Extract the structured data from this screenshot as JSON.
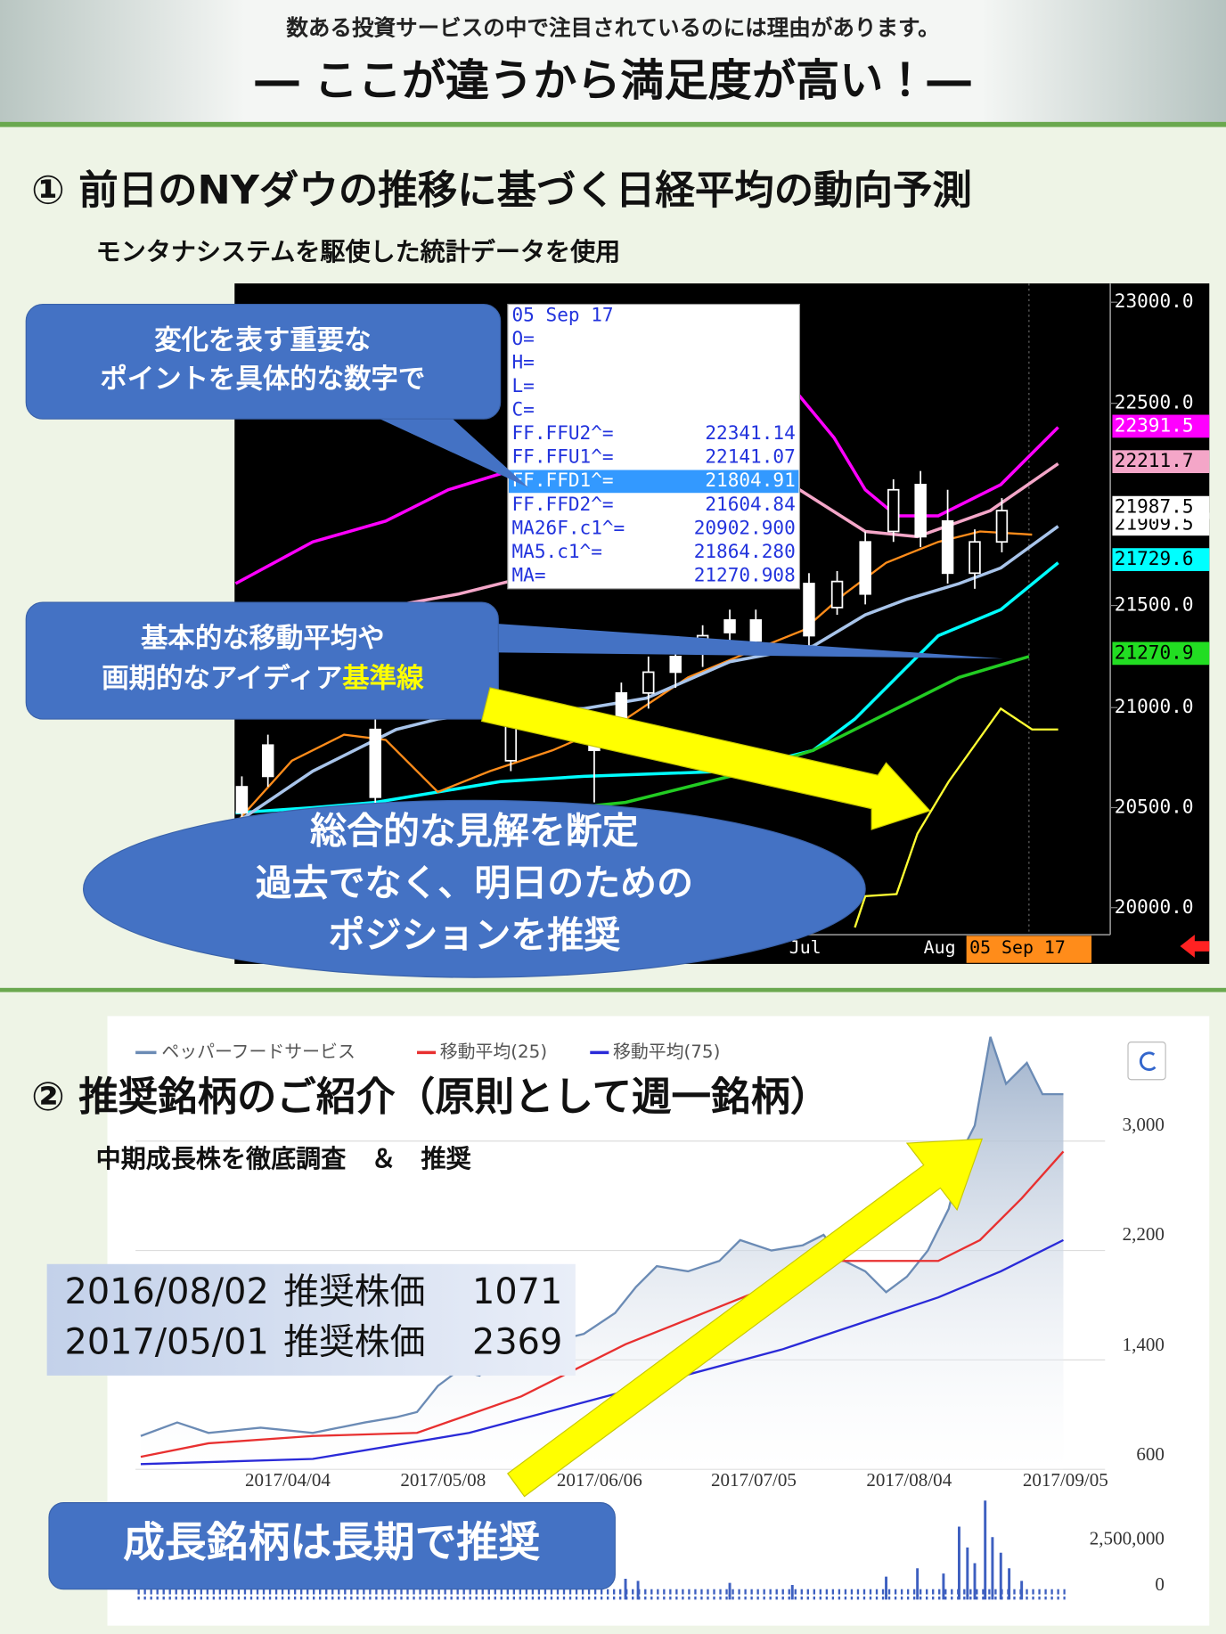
{
  "header": {
    "lead": "数ある投資サービスの中で注目されているのには理由があります。",
    "title": "― ここが違うから満足度が高い！―"
  },
  "section1": {
    "title": "① 前日のNYダウの推移に基づく日経平均の動向予測",
    "subtitle": "モンタナシステムを駆使した統計データを使用",
    "chart": {
      "y_labels": [
        "23000.0",
        "22500.0",
        "21500.0",
        "21000.0",
        "20500.0",
        "20000.0"
      ],
      "price_tags": [
        "22391.5",
        "22211.7",
        "21987.5",
        "21909.5",
        "21729.6",
        "21270.9"
      ],
      "x_labels": [
        "Jul",
        "Aug",
        "05 Sep 17"
      ],
      "tooltip": {
        "rows": [
          {
            "label": "05 Sep 17"
          },
          {
            "label": "O="
          },
          {
            "label": "H="
          },
          {
            "label": "L="
          },
          {
            "label": "C="
          },
          {
            "label": "FF.FFU2^=",
            "value": "22341.14"
          },
          {
            "label": "FF.FFU1^=",
            "value": "22141.07"
          },
          {
            "label": "FF.FFD1^=",
            "value": "21804.91"
          },
          {
            "label": "FF.FFD2^=",
            "value": "21604.84"
          },
          {
            "label": "MA26F.c1^=",
            "value": "20902.900"
          },
          {
            "label": "MA5.c1^=",
            "value": "21864.280"
          },
          {
            "label": "MA=",
            "value": "21270.908"
          }
        ]
      }
    },
    "callouts": [
      {
        "lines": [
          "変化を表す重要な",
          "ポイントを具体的な数字で"
        ]
      },
      {
        "lines": [
          "基本的な移動平均や",
          "画期的なアイディア"
        ],
        "highlight": "基準線"
      },
      {
        "lines": [
          "総合的な見解を断定",
          "過去でなく、明日のための",
          "ポジションを推奨"
        ]
      }
    ]
  },
  "section2": {
    "title": "② 推奨銘柄のご紹介（原則として週一銘柄）",
    "subtitle": "中期成長株を徹底調査　＆　推奨",
    "chart": {
      "legend": [
        "ペッパーフードサービス",
        "移動平均(25)",
        "移動平均(75)"
      ],
      "y_labels": [
        "3,000",
        "2,200",
        "1,400",
        "600"
      ],
      "x_labels": [
        "2017/04/04",
        "2017/05/08",
        "2017/06/06",
        "2017/07/05",
        "2017/08/04",
        "2017/09/05"
      ],
      "volume_labels": [
        "2,500,000",
        "0"
      ]
    },
    "recommendations": [
      {
        "date": "2016/08/02",
        "label": "推奨株価",
        "price": "1071"
      },
      {
        "date": "2017/05/01",
        "label": "推奨株価",
        "price": "2369"
      }
    ],
    "callout": "成長銘柄は長期で推奨"
  }
}
